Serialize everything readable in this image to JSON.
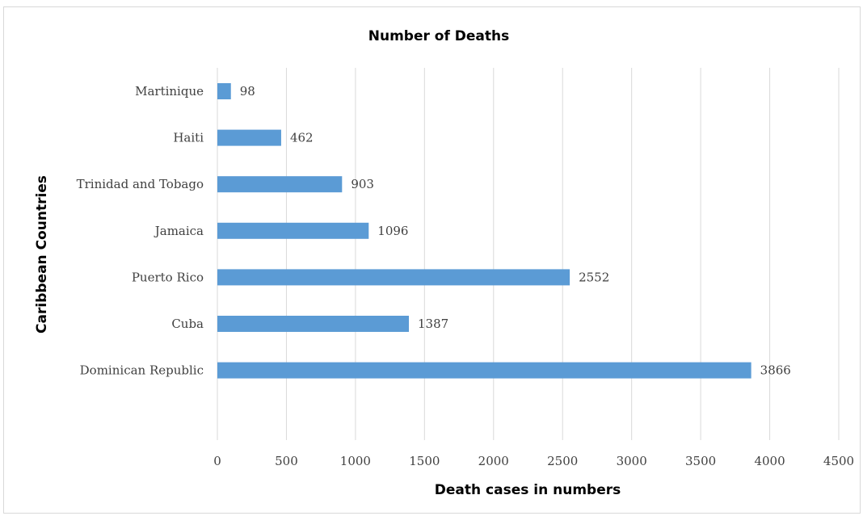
{
  "chart_data": {
    "type": "bar",
    "orientation": "horizontal",
    "title": "Number of Deaths",
    "xlabel": "Death cases in numbers",
    "ylabel": "Caribbean Countries",
    "categories": [
      "Martinique",
      "Haiti",
      "Trinidad and Tobago",
      "Jamaica",
      "Puerto Rico",
      "Cuba",
      "Dominican Republic"
    ],
    "values": [
      98,
      462,
      903,
      1096,
      2552,
      1387,
      3866
    ],
    "data_labels": [
      "98",
      "462",
      "903",
      "1096",
      "2552",
      "1387",
      "3866"
    ],
    "xlim": [
      0,
      4500
    ],
    "xticks": [
      0,
      500,
      1000,
      1500,
      2000,
      2500,
      3000,
      3500,
      4000,
      4500
    ],
    "xtick_labels": [
      "0",
      "500",
      "1000",
      "1500",
      "2000",
      "2500",
      "3000",
      "3500",
      "4000",
      "4500"
    ],
    "grid": "vertical",
    "legend": "none",
    "bar_color": "#5b9bd5",
    "grid_color": "#d9d9d9"
  }
}
